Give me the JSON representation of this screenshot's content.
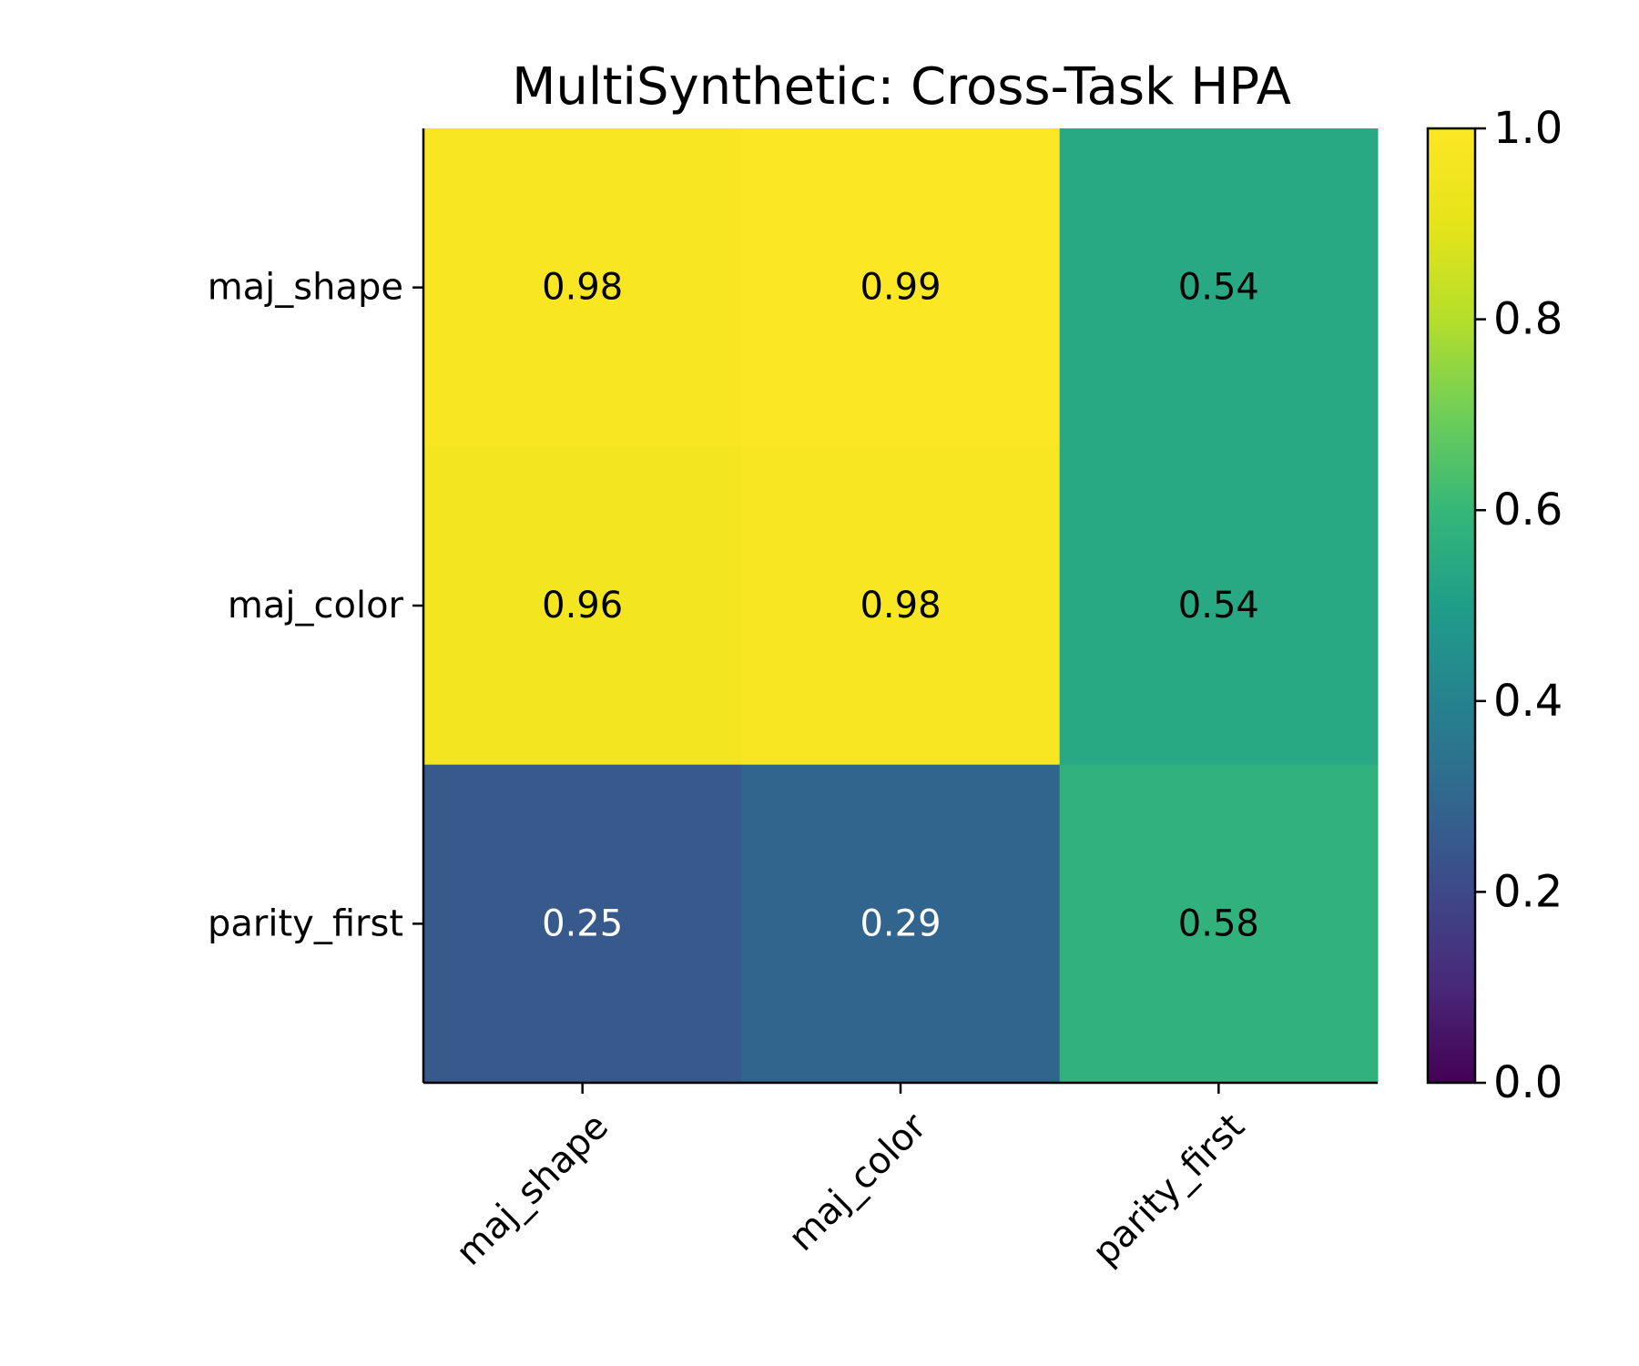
{
  "chart_data": {
    "type": "heatmap",
    "title": "MultiSynthetic: Cross-Task HPA",
    "xlabel": "",
    "ylabel": "",
    "row_labels": [
      "maj_shape",
      "maj_color",
      "parity_first"
    ],
    "col_labels": [
      "maj_shape",
      "maj_color",
      "parity_first"
    ],
    "values": [
      [
        0.98,
        0.99,
        0.54
      ],
      [
        0.96,
        0.98,
        0.54
      ],
      [
        0.25,
        0.29,
        0.58
      ]
    ],
    "value_labels": [
      [
        "0.98",
        "0.99",
        "0.54"
      ],
      [
        "0.96",
        "0.98",
        "0.54"
      ],
      [
        "0.25",
        "0.29",
        "0.58"
      ]
    ],
    "colormap": "viridis",
    "vmin": 0.0,
    "vmax": 1.0,
    "colorbar_ticks": [
      0.0,
      0.2,
      0.4,
      0.6,
      0.8,
      1.0
    ],
    "colorbar_tick_labels": [
      "0.0",
      "0.2",
      "0.4",
      "0.6",
      "0.8",
      "1.0"
    ],
    "text_color_dark": "#000000",
    "text_color_light": "#ffffff",
    "text_threshold": 0.4
  }
}
